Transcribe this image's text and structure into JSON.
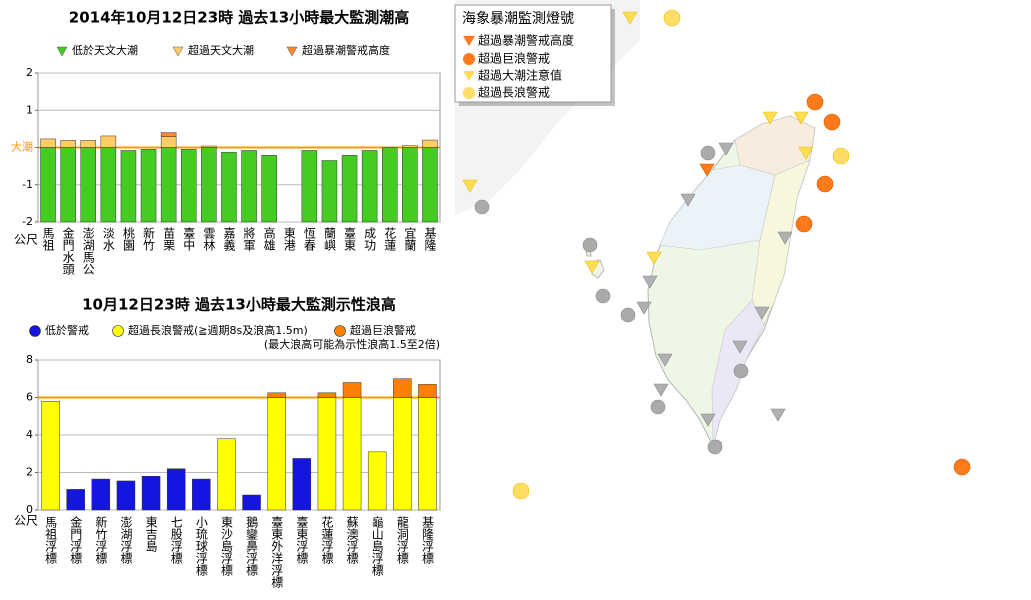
{
  "chart_data": [
    {
      "type": "bar",
      "stacked": true,
      "title": "2014年10月12日23時 過去13小時最大監測潮高",
      "y_label": "公尺",
      "categories": [
        "馬祖",
        "金門水頭",
        "澎湖馬公",
        "淡水",
        "桃園",
        "新竹",
        "苗栗",
        "臺中",
        "雲林",
        "嘉義",
        "將軍",
        "高雄",
        "東港",
        "恆春",
        "蘭嶼",
        "臺東",
        "成功",
        "花蓮",
        "宜蘭",
        "基隆"
      ],
      "series": [
        {
          "name": "低於天文大潮",
          "color": "#44cc22",
          "values": [
            0,
            0,
            0,
            0,
            -0.08,
            -0.05,
            0,
            -0.05,
            0,
            -0.13,
            -0.08,
            -0.21,
            null,
            -0.08,
            -0.35,
            -0.21,
            -0.08,
            0,
            0,
            0
          ]
        },
        {
          "name": "超過天文大潮",
          "color": "#ffcc66",
          "values": [
            0.23,
            0.19,
            0.19,
            0.31,
            null,
            null,
            0.29,
            null,
            0.04,
            null,
            null,
            null,
            null,
            null,
            null,
            null,
            null,
            null,
            0.05,
            0.2
          ]
        },
        {
          "name": "超過暴潮警戒高度",
          "color": "#ff8833",
          "values": [
            null,
            null,
            null,
            null,
            null,
            null,
            0.11,
            null,
            null,
            null,
            null,
            null,
            null,
            null,
            null,
            null,
            null,
            null,
            null,
            null
          ]
        }
      ],
      "ylim": [
        -2,
        2
      ],
      "yticks": [
        -2,
        -1,
        {
          "value": 0,
          "label": "大潮"
        },
        1,
        2
      ],
      "grid": true,
      "legend_marker": "triangle",
      "reference_color": "#ff9900"
    },
    {
      "type": "bar",
      "stacked": true,
      "title": "10月12日23時 過去13小時最大監測示性浪高",
      "y_label": "公尺",
      "note": "(最大浪高可能為示性浪高1.5至2倍)",
      "categories": [
        "馬祖浮標",
        "金門浮標",
        "新竹浮標",
        "澎湖浮標",
        "東吉島",
        "七股浮標",
        "小琉球浮標",
        "東沙島浮標",
        "鵝鑾鼻浮標",
        "臺東外洋浮標",
        "臺東浮標",
        "花蓮浮標",
        "蘇澳浮標",
        "龜山島浮標",
        "龍洞浮標",
        "基隆浮標"
      ],
      "series": [
        {
          "name": "低於警戒",
          "color": "#1515e0",
          "values": [
            null,
            1.1,
            1.65,
            1.55,
            1.8,
            2.2,
            1.65,
            null,
            0.8,
            null,
            2.75,
            null,
            null,
            null,
            null,
            null
          ]
        },
        {
          "name": "超過長浪警戒(≧週期8s及浪高1.5m)",
          "color": "#ffff00",
          "values": [
            5.8,
            null,
            null,
            null,
            null,
            null,
            null,
            3.8,
            null,
            6,
            null,
            6,
            6,
            3.1,
            6,
            6
          ]
        },
        {
          "name": "超過巨浪警戒",
          "color": "#ff8000",
          "values": [
            null,
            null,
            null,
            null,
            null,
            null,
            null,
            null,
            null,
            0.25,
            null,
            0.25,
            0.8,
            null,
            1.0,
            0.7
          ]
        }
      ],
      "ylim": [
        0,
        8
      ],
      "yticks": [
        0,
        2,
        4,
        6,
        8
      ],
      "reference_line": 6,
      "reference_color": "#ff9900",
      "grid": true,
      "legend_marker": "circle"
    }
  ],
  "map": {
    "legend_title": "海象暴潮監測燈號",
    "legend_items": [
      "超過暴潮警戒高度",
      "超過巨浪警戒",
      "超過大潮注意值",
      "超過長浪警戒"
    ]
  }
}
